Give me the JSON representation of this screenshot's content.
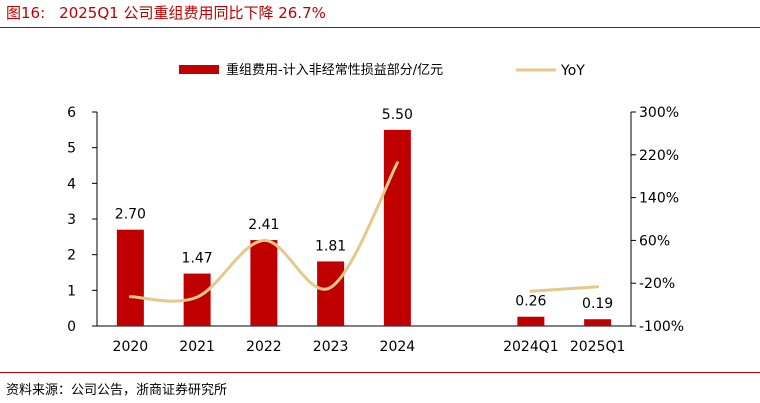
{
  "header": {
    "figure_no": "图16:",
    "title": "2025Q1 公司重组费用同比下降 26.7%"
  },
  "footer": {
    "source": "资料来源：公司公告，浙商证券研究所"
  },
  "colors": {
    "bar": "#c00000",
    "line": "#e6c88a",
    "title": "#c00000",
    "axis": "#000000"
  },
  "chart_data": {
    "type": "bar",
    "categories": [
      "2020",
      "2021",
      "2022",
      "2023",
      "2024",
      "",
      "2024Q1",
      "2025Q1"
    ],
    "series": [
      {
        "name": "重组费用-计入非经常性损益部分/亿元",
        "type": "bar",
        "axis": "left",
        "values": [
          2.7,
          1.47,
          2.41,
          1.81,
          5.5,
          null,
          0.26,
          0.19
        ],
        "labels": [
          "2.70",
          "1.47",
          "2.41",
          "1.81",
          "5.50",
          "",
          "0.26",
          "0.19"
        ]
      },
      {
        "name": "YoY",
        "type": "line",
        "axis": "right",
        "smooth": true,
        "values": [
          -45,
          -46,
          60,
          -28,
          205,
          null,
          -35,
          -26.7
        ]
      }
    ],
    "y_left": {
      "ylim": [
        0,
        6
      ],
      "ticks": [
        "0",
        "1",
        "2",
        "3",
        "4",
        "5",
        "6"
      ]
    },
    "y_right": {
      "ylim": [
        -100,
        300
      ],
      "ticks": [
        "-100%",
        "-20%",
        "60%",
        "140%",
        "220%",
        "300%"
      ]
    },
    "legend_position": "top",
    "grid": false
  }
}
